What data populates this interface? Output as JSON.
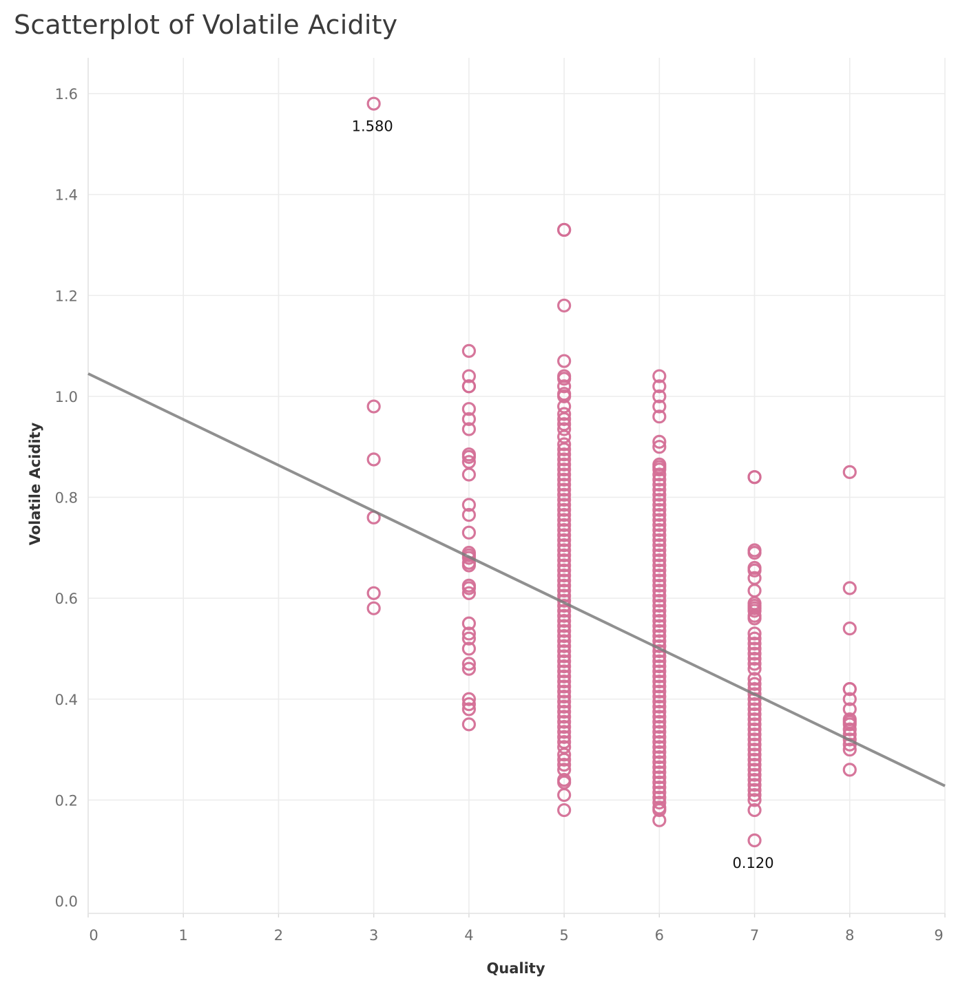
{
  "title": "Scatterplot of Volatile Acidity",
  "chart_data": {
    "type": "scatter",
    "title": "Scatterplot of Volatile Acidity",
    "xlabel": "Quality",
    "ylabel": "Volatile Acidity",
    "xlim": [
      0,
      9
    ],
    "ylim": [
      0,
      1.65
    ],
    "x_ticks": [
      "0",
      "1",
      "2",
      "3",
      "4",
      "5",
      "6",
      "7",
      "8",
      "9"
    ],
    "y_ticks": [
      "0.0",
      "0.2",
      "0.4",
      "0.6",
      "0.8",
      "1.0",
      "1.2",
      "1.4",
      "1.6"
    ],
    "grid": true,
    "point_color": "#d46f96",
    "trend_color": "#7d7d7d",
    "trend_line": {
      "x": [
        0,
        9
      ],
      "y": [
        1.045,
        0.228
      ]
    },
    "annotations": [
      {
        "text": "1.580",
        "x": 3,
        "y": 1.58,
        "position": "below"
      },
      {
        "text": "0.120",
        "x": 7,
        "y": 0.12,
        "position": "below"
      }
    ],
    "series": [
      {
        "x": 3,
        "values": [
          1.58,
          0.98,
          0.875,
          0.76,
          0.61,
          0.58
        ]
      },
      {
        "x": 4,
        "values": [
          1.09,
          1.04,
          1.02,
          1.02,
          0.975,
          0.955,
          0.935,
          0.885,
          0.88,
          0.87,
          0.845,
          0.785,
          0.765,
          0.73,
          0.69,
          0.685,
          0.68,
          0.67,
          0.665,
          0.625,
          0.62,
          0.61,
          0.55,
          0.53,
          0.52,
          0.5,
          0.47,
          0.46,
          0.4,
          0.39,
          0.38,
          0.35
        ]
      },
      {
        "x": 5,
        "values": [
          1.33,
          1.33,
          1.18,
          1.07,
          1.04,
          1.035,
          1.02,
          1.005,
          1.0,
          0.98,
          0.965,
          0.955,
          0.945,
          0.935,
          0.92,
          0.905,
          0.895,
          0.885,
          0.875,
          0.865,
          0.855,
          0.845,
          0.835,
          0.825,
          0.815,
          0.805,
          0.795,
          0.785,
          0.775,
          0.765,
          0.755,
          0.745,
          0.735,
          0.725,
          0.715,
          0.705,
          0.695,
          0.685,
          0.675,
          0.665,
          0.655,
          0.645,
          0.635,
          0.625,
          0.615,
          0.605,
          0.595,
          0.585,
          0.575,
          0.565,
          0.555,
          0.545,
          0.535,
          0.525,
          0.515,
          0.505,
          0.495,
          0.485,
          0.475,
          0.465,
          0.455,
          0.445,
          0.435,
          0.425,
          0.415,
          0.405,
          0.395,
          0.385,
          0.375,
          0.365,
          0.355,
          0.345,
          0.335,
          0.325,
          0.315,
          0.305,
          0.29,
          0.28,
          0.27,
          0.26,
          0.24,
          0.235,
          0.21,
          0.18
        ]
      },
      {
        "x": 6,
        "values": [
          1.04,
          1.02,
          1.0,
          0.98,
          0.96,
          0.91,
          0.9,
          0.865,
          0.86,
          0.855,
          0.845,
          0.835,
          0.825,
          0.815,
          0.805,
          0.795,
          0.785,
          0.775,
          0.765,
          0.755,
          0.745,
          0.735,
          0.725,
          0.715,
          0.705,
          0.695,
          0.685,
          0.675,
          0.665,
          0.655,
          0.645,
          0.635,
          0.625,
          0.615,
          0.605,
          0.595,
          0.585,
          0.575,
          0.565,
          0.555,
          0.545,
          0.535,
          0.525,
          0.515,
          0.505,
          0.495,
          0.485,
          0.475,
          0.465,
          0.455,
          0.445,
          0.435,
          0.425,
          0.415,
          0.405,
          0.395,
          0.385,
          0.375,
          0.365,
          0.355,
          0.345,
          0.335,
          0.325,
          0.315,
          0.305,
          0.295,
          0.285,
          0.275,
          0.265,
          0.255,
          0.245,
          0.235,
          0.225,
          0.215,
          0.205,
          0.195,
          0.185,
          0.18,
          0.16
        ]
      },
      {
        "x": 7,
        "values": [
          0.84,
          0.84,
          0.695,
          0.69,
          0.66,
          0.655,
          0.64,
          0.615,
          0.59,
          0.585,
          0.58,
          0.575,
          0.565,
          0.56,
          0.53,
          0.52,
          0.51,
          0.5,
          0.49,
          0.48,
          0.47,
          0.46,
          0.44,
          0.43,
          0.42,
          0.41,
          0.4,
          0.39,
          0.38,
          0.37,
          0.36,
          0.35,
          0.34,
          0.33,
          0.32,
          0.31,
          0.3,
          0.29,
          0.28,
          0.27,
          0.26,
          0.25,
          0.24,
          0.23,
          0.22,
          0.21,
          0.2,
          0.18,
          0.12
        ]
      },
      {
        "x": 8,
        "values": [
          0.85,
          0.62,
          0.54,
          0.42,
          0.42,
          0.4,
          0.38,
          0.36,
          0.355,
          0.35,
          0.34,
          0.33,
          0.32,
          0.31,
          0.3,
          0.26
        ]
      }
    ]
  }
}
